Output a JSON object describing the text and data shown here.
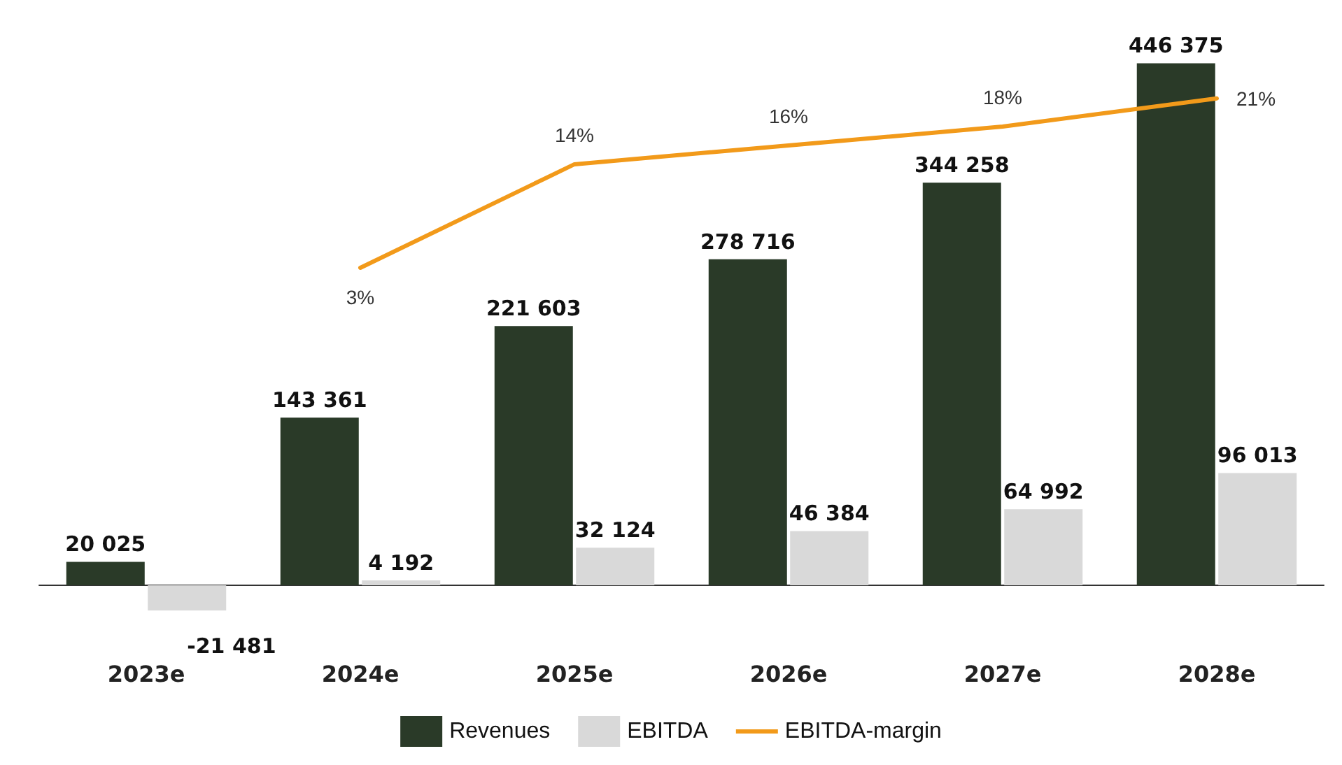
{
  "chart_data": {
    "type": "bar",
    "categories": [
      "2023e",
      "2024e",
      "2025e",
      "2026e",
      "2027e",
      "2028e"
    ],
    "series": [
      {
        "name": "Revenues",
        "color": "#2a3a28",
        "values": [
          20025,
          143361,
          221603,
          278716,
          344258,
          446375
        ],
        "value_labels": [
          "20 025",
          "143 361",
          "221 603",
          "278 716",
          "344 258",
          "446 375"
        ]
      },
      {
        "name": "EBITDA",
        "color": "#d9d9d9",
        "values": [
          -21481,
          4192,
          32124,
          46384,
          64992,
          96013
        ],
        "value_labels": [
          "-21 481",
          "4 192",
          "32 124",
          "46 384",
          "64 992",
          "96 013"
        ]
      },
      {
        "name": "EBITDA-margin",
        "type": "line",
        "axis": "y2",
        "color": "#f29a1a",
        "values": [
          null,
          3,
          14,
          16,
          18,
          21
        ],
        "value_labels": [
          null,
          "3%",
          "14%",
          "16%",
          "18%",
          "21%"
        ]
      }
    ],
    "tick_labels": "x",
    "legend": "bottom",
    "marker": "none"
  }
}
